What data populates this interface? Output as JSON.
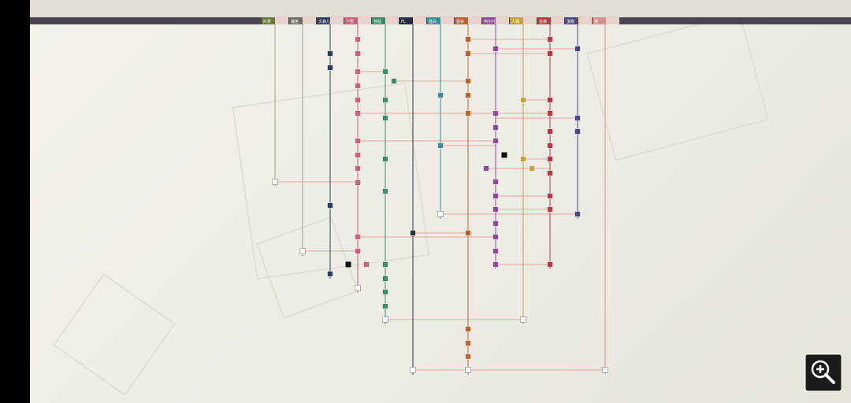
{
  "header": {
    "tabs": [
      "红茶",
      "魔笛",
      "文森儿",
      "下雪",
      "苍蓝",
      "FL",
      "蓝白",
      "蓝铃",
      "阿尔托",
      "人偶",
      "亚森",
      "蛋糕",
      "夜"
    ]
  }
}
